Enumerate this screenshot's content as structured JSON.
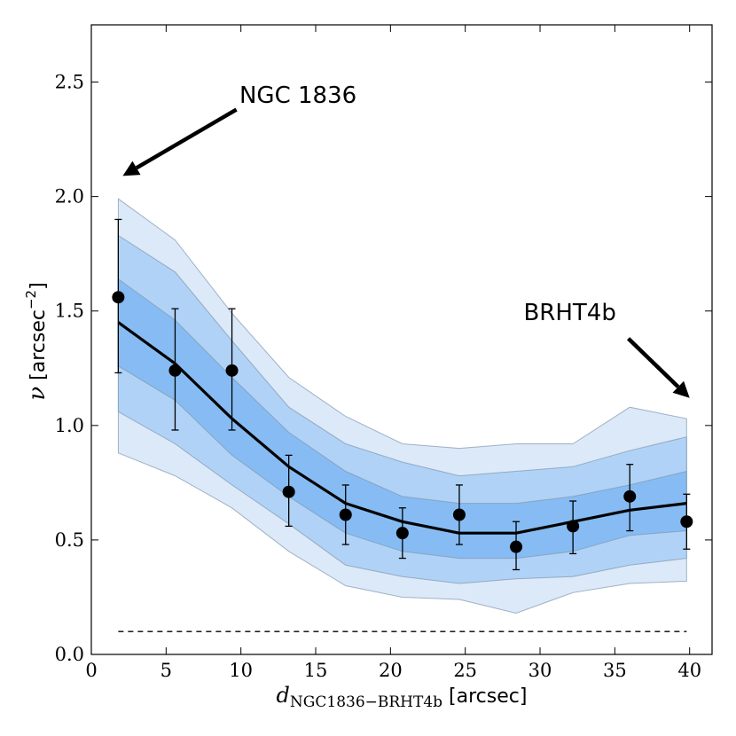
{
  "chart_data": {
    "type": "line",
    "title": "",
    "xlabel": {
      "main": "d",
      "sub": "NGC1836−BRHT4b",
      "unit": " [arcsec]"
    },
    "ylabel": {
      "main": "ν",
      "unit": " [arcsec",
      "exp": "−2",
      "close": "]"
    },
    "xlim": [
      0,
      41.5
    ],
    "ylim": [
      0,
      2.75
    ],
    "xticks": [
      0,
      5,
      10,
      15,
      20,
      25,
      30,
      35,
      40
    ],
    "xtick_labels": [
      "0",
      "5",
      "10",
      "15",
      "20",
      "25",
      "30",
      "35",
      "40"
    ],
    "yticks": [
      0.0,
      0.5,
      1.0,
      1.5,
      2.0,
      2.5
    ],
    "ytick_labels": [
      "0.0",
      "0.5",
      "1.0",
      "1.5",
      "2.0",
      "2.5"
    ],
    "grid": false,
    "band_x": [
      1.8,
      5.6,
      9.4,
      13.2,
      17.0,
      20.8,
      24.6,
      28.4,
      32.2,
      36.0,
      39.8
    ],
    "bands": [
      {
        "level": "outer",
        "color": "#dbe9f9",
        "upper": [
          1.99,
          1.81,
          1.49,
          1.21,
          1.04,
          0.92,
          0.9,
          0.92,
          0.92,
          1.08,
          1.03
        ],
        "lower": [
          0.88,
          0.78,
          0.64,
          0.45,
          0.3,
          0.25,
          0.24,
          0.18,
          0.27,
          0.31,
          0.32
        ]
      },
      {
        "level": "middle",
        "color": "#b0d2f6",
        "upper": [
          1.83,
          1.67,
          1.37,
          1.08,
          0.92,
          0.84,
          0.78,
          0.8,
          0.82,
          0.89,
          0.95
        ],
        "lower": [
          1.06,
          0.92,
          0.74,
          0.57,
          0.39,
          0.34,
          0.31,
          0.33,
          0.34,
          0.39,
          0.42
        ]
      },
      {
        "level": "inner",
        "color": "#86bcf3",
        "upper": [
          1.64,
          1.46,
          1.21,
          0.97,
          0.8,
          0.69,
          0.66,
          0.66,
          0.69,
          0.74,
          0.8
        ],
        "lower": [
          1.26,
          1.11,
          0.87,
          0.69,
          0.53,
          0.45,
          0.42,
          0.42,
          0.45,
          0.52,
          0.54
        ]
      }
    ],
    "median": {
      "x": [
        1.8,
        5.6,
        9.4,
        13.2,
        17.0,
        20.8,
        24.6,
        28.4,
        32.2,
        36.0,
        39.8
      ],
      "y": [
        1.45,
        1.27,
        1.03,
        0.82,
        0.66,
        0.58,
        0.53,
        0.53,
        0.58,
        0.63,
        0.66
      ]
    },
    "points": {
      "x": [
        1.8,
        5.6,
        9.4,
        13.2,
        17.0,
        20.8,
        24.6,
        28.4,
        32.2,
        36.0,
        39.8
      ],
      "y": [
        1.56,
        1.24,
        1.24,
        0.71,
        0.61,
        0.53,
        0.61,
        0.47,
        0.56,
        0.69,
        0.58
      ],
      "err_low": [
        1.23,
        0.98,
        0.98,
        0.56,
        0.48,
        0.42,
        0.48,
        0.37,
        0.44,
        0.54,
        0.46
      ],
      "err_high": [
        1.9,
        1.51,
        1.51,
        0.87,
        0.74,
        0.64,
        0.74,
        0.58,
        0.67,
        0.83,
        0.7
      ]
    },
    "background_level": {
      "y": 0.1,
      "x": [
        1.8,
        39.8
      ]
    },
    "annotations": [
      {
        "text": "NGC 1836",
        "label_at": [
          9.9,
          2.41
        ],
        "arrow_from": [
          9.7,
          2.38
        ],
        "arrow_to": [
          2.1,
          2.09
        ]
      },
      {
        "text": "BRHT4b",
        "label_at": [
          28.9,
          1.46
        ],
        "arrow_from": [
          35.9,
          1.38
        ],
        "arrow_to": [
          40.0,
          1.12
        ]
      }
    ]
  }
}
